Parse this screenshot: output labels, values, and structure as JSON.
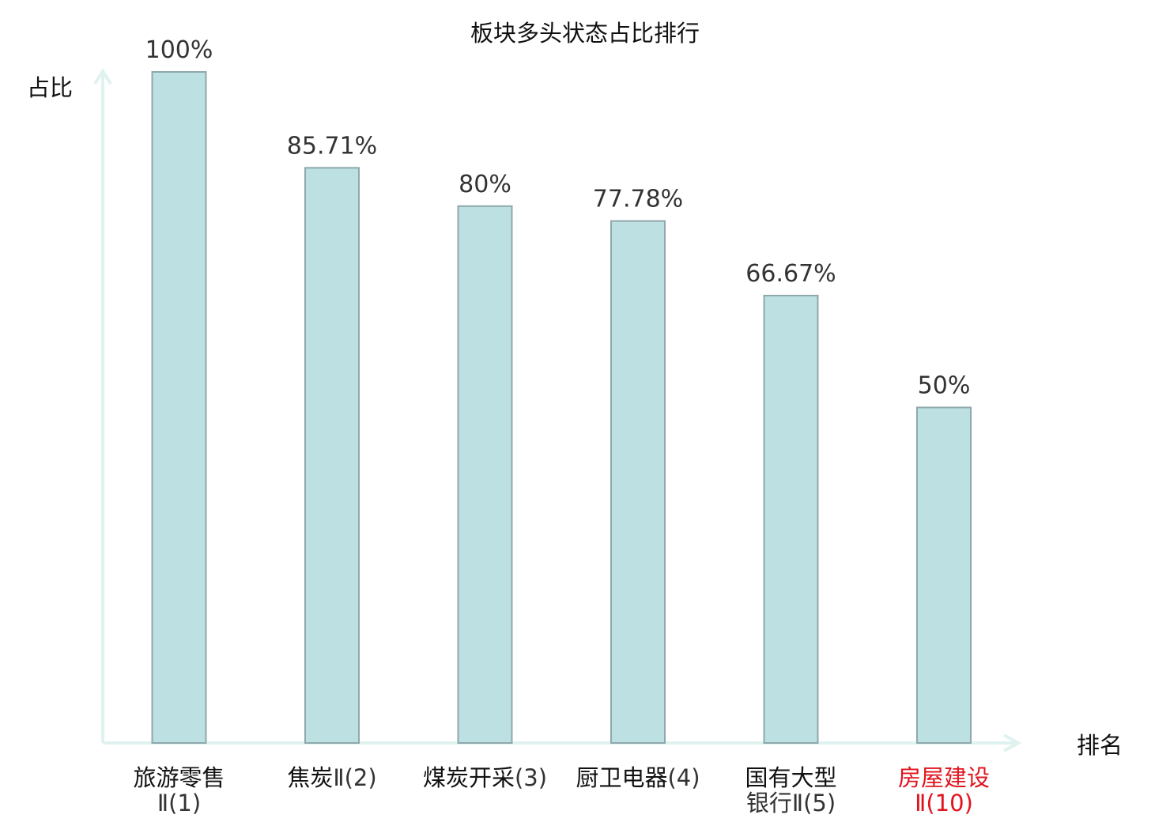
{
  "chart_data": {
    "type": "bar",
    "title": "板块多头状态占比排行",
    "ylabel": "占比",
    "xlabel": "排名",
    "ylim": [
      0,
      100
    ],
    "grid": false,
    "legend": "none",
    "categories": [
      {
        "name": "旅游零售",
        "suffix": "Ⅱ(1)",
        "wrap": true,
        "highlight": false
      },
      {
        "name": "焦炭",
        "suffix": "Ⅱ(2)",
        "wrap": false,
        "highlight": false
      },
      {
        "name": "煤炭开采",
        "suffix": "(3)",
        "wrap": false,
        "highlight": false
      },
      {
        "name": "厨卫电器",
        "suffix": "(4)",
        "wrap": false,
        "highlight": false
      },
      {
        "name": "国有大型",
        "suffix": "银行Ⅱ(5)",
        "wrap": true,
        "highlight": false
      },
      {
        "name": "房屋建设",
        "suffix": "Ⅱ(10)",
        "wrap": true,
        "highlight": true
      }
    ],
    "values": [
      100,
      85.71,
      80,
      77.78,
      66.67,
      50
    ],
    "value_labels": [
      "100%",
      "85.71%",
      "80%",
      "77.78%",
      "66.67%",
      "50%"
    ],
    "colors": {
      "bar_fill": "#bde0e3",
      "bar_stroke": "#8fa8ab",
      "axis": "#dff2ef",
      "text": "#111111",
      "suffix_text": "#333333",
      "highlight_text": "#e0141e"
    }
  }
}
